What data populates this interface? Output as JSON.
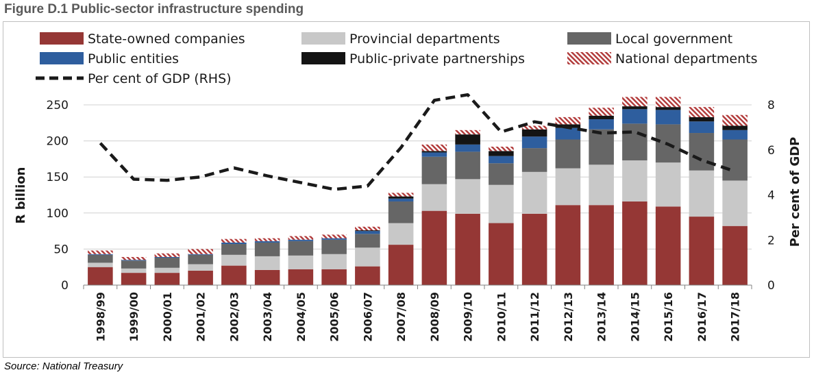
{
  "figure": {
    "title": "Figure D.1 Public-sector infrastructure spending",
    "source": "Source: National Treasury"
  },
  "chart_data": {
    "type": "bar",
    "stacked": true,
    "categories": [
      "1998/99",
      "1999/00",
      "2000/01",
      "2001/02",
      "2002/03",
      "2003/04",
      "2004/05",
      "2005/06",
      "2006/07",
      "2007/08",
      "2008/09",
      "2009/10",
      "2010/11",
      "2011/12",
      "2012/13",
      "2013/14",
      "2014/15",
      "2015/16",
      "2016/17",
      "2017/18"
    ],
    "series": [
      {
        "name": "State-owned companies",
        "color": "#953735",
        "pattern": "solid",
        "values": [
          25,
          17,
          17,
          20,
          27,
          21,
          22,
          22,
          26,
          56,
          103,
          99,
          86,
          99,
          111,
          111,
          116,
          109,
          95,
          82
        ]
      },
      {
        "name": "Provincial departments",
        "color": "#c8c8c8",
        "pattern": "solid",
        "values": [
          6,
          6,
          7,
          9,
          15,
          19,
          19,
          21,
          26,
          30,
          37,
          48,
          53,
          58,
          51,
          56,
          57,
          61,
          64,
          63
        ]
      },
      {
        "name": "Local government",
        "color": "#666666",
        "pattern": "solid",
        "values": [
          11,
          11,
          14,
          13,
          15,
          19,
          20,
          20,
          19,
          30,
          38,
          38,
          30,
          33,
          40,
          49,
          51,
          53,
          52,
          57
        ]
      },
      {
        "name": "Public entities",
        "color": "#2e5e9e",
        "pattern": "solid",
        "values": [
          1,
          1,
          1,
          1,
          2,
          2,
          2,
          2,
          4,
          4,
          6,
          10,
          10,
          16,
          16,
          14,
          20,
          20,
          16,
          13
        ]
      },
      {
        "name": "Public-private partnerships",
        "color": "#141414",
        "pattern": "solid",
        "values": [
          0,
          0,
          0,
          0,
          0,
          0,
          0,
          0,
          1,
          3,
          2,
          14,
          7,
          10,
          5,
          5,
          4,
          4,
          6,
          6
        ]
      },
      {
        "name": "National departments",
        "color": "#b23c3c",
        "pattern": "hatch",
        "values": [
          5,
          4,
          5,
          7,
          5,
          4,
          5,
          5,
          5,
          5,
          9,
          6,
          6,
          5,
          10,
          11,
          13,
          14,
          14,
          15
        ]
      }
    ],
    "line_series": {
      "name": "Per cent of GDP (RHS)",
      "axis": "right",
      "style": "dashed",
      "color": "#1a1a1a",
      "values": [
        6.3,
        4.7,
        4.65,
        4.8,
        5.2,
        4.85,
        4.55,
        4.25,
        4.4,
        6.1,
        8.2,
        8.45,
        6.8,
        7.25,
        7.0,
        6.75,
        6.8,
        6.25,
        5.55,
        5.05
      ]
    },
    "ylabel": "R billion",
    "ylim": [
      0,
      250
    ],
    "yticks": [
      0,
      50,
      100,
      150,
      200,
      250
    ],
    "y2label": "Per cent of GDP",
    "y2lim": [
      0,
      8
    ],
    "y2ticks": [
      0,
      2,
      4,
      6,
      8
    ],
    "grid": "horizontal",
    "legend_placement": "top"
  }
}
